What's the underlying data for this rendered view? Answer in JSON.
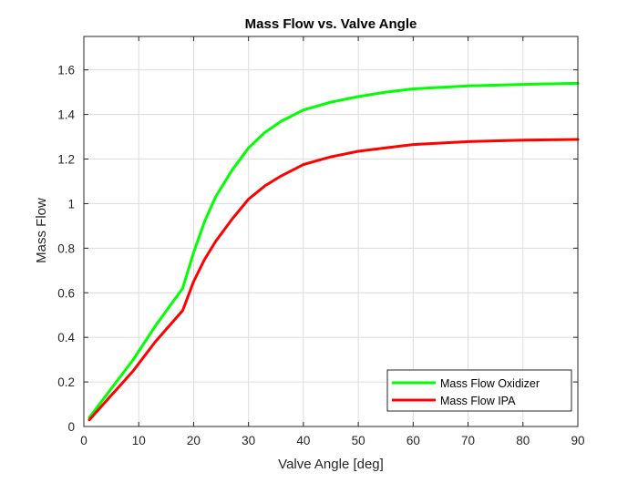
{
  "chart_data": {
    "type": "line",
    "title": "Mass Flow vs. Valve Angle",
    "xlabel": "Valve Angle [deg]",
    "ylabel": "Mass Flow",
    "xlim": [
      0,
      90
    ],
    "ylim": [
      0,
      1.75
    ],
    "xticks": [
      "0",
      "10",
      "20",
      "30",
      "40",
      "50",
      "60",
      "70",
      "80",
      "90"
    ],
    "yticks": [
      "0",
      "0.2",
      "0.4",
      "0.6",
      "0.8",
      "1",
      "1.2",
      "1.4",
      "1.6"
    ],
    "grid": true,
    "legend_position": "bottom-right",
    "series": [
      {
        "name": "Mass Flow Oxidizer",
        "color": "#00ff00",
        "x": [
          1,
          5,
          9,
          13,
          18,
          20,
          22,
          24,
          27,
          30,
          33,
          36,
          40,
          45,
          50,
          55,
          60,
          70,
          80,
          90
        ],
        "y": [
          0.04,
          0.17,
          0.3,
          0.45,
          0.62,
          0.78,
          0.92,
          1.03,
          1.15,
          1.25,
          1.32,
          1.37,
          1.42,
          1.455,
          1.48,
          1.5,
          1.515,
          1.528,
          1.535,
          1.54
        ]
      },
      {
        "name": "Mass Flow IPA",
        "color": "#ff0000",
        "x": [
          1,
          5,
          9,
          13,
          18,
          20,
          22,
          24,
          27,
          30,
          33,
          36,
          40,
          45,
          50,
          55,
          60,
          70,
          80,
          90
        ],
        "y": [
          0.03,
          0.14,
          0.25,
          0.38,
          0.52,
          0.65,
          0.75,
          0.83,
          0.93,
          1.02,
          1.08,
          1.125,
          1.175,
          1.21,
          1.235,
          1.25,
          1.265,
          1.278,
          1.285,
          1.288
        ]
      }
    ]
  }
}
